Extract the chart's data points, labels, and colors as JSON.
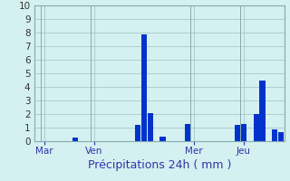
{
  "title": "Précipitations 24h ( mm )",
  "ylim": [
    0,
    10
  ],
  "yticks": [
    0,
    1,
    2,
    3,
    4,
    5,
    6,
    7,
    8,
    9,
    10
  ],
  "background_color": "#d4f0f0",
  "bar_color": "#0033cc",
  "grid_color": "#a8c8c8",
  "bar_values": [
    0,
    0,
    0,
    0,
    0,
    0,
    0.3,
    0,
    0,
    0,
    0,
    0,
    0,
    0,
    0,
    0,
    1.2,
    7.9,
    2.1,
    0,
    0.35,
    0,
    0,
    0,
    1.25,
    0,
    0,
    0,
    0,
    0,
    0,
    0,
    1.2,
    1.3,
    0,
    2.0,
    4.5,
    0,
    0.9,
    0.65
  ],
  "day_labels": [
    "Mar",
    "Ven",
    "Mer",
    "Jeu"
  ],
  "day_positions": [
    1,
    9,
    25,
    33
  ],
  "title_fontsize": 9,
  "tick_fontsize": 7.5,
  "figsize": [
    3.2,
    2.0
  ],
  "dpi": 100
}
